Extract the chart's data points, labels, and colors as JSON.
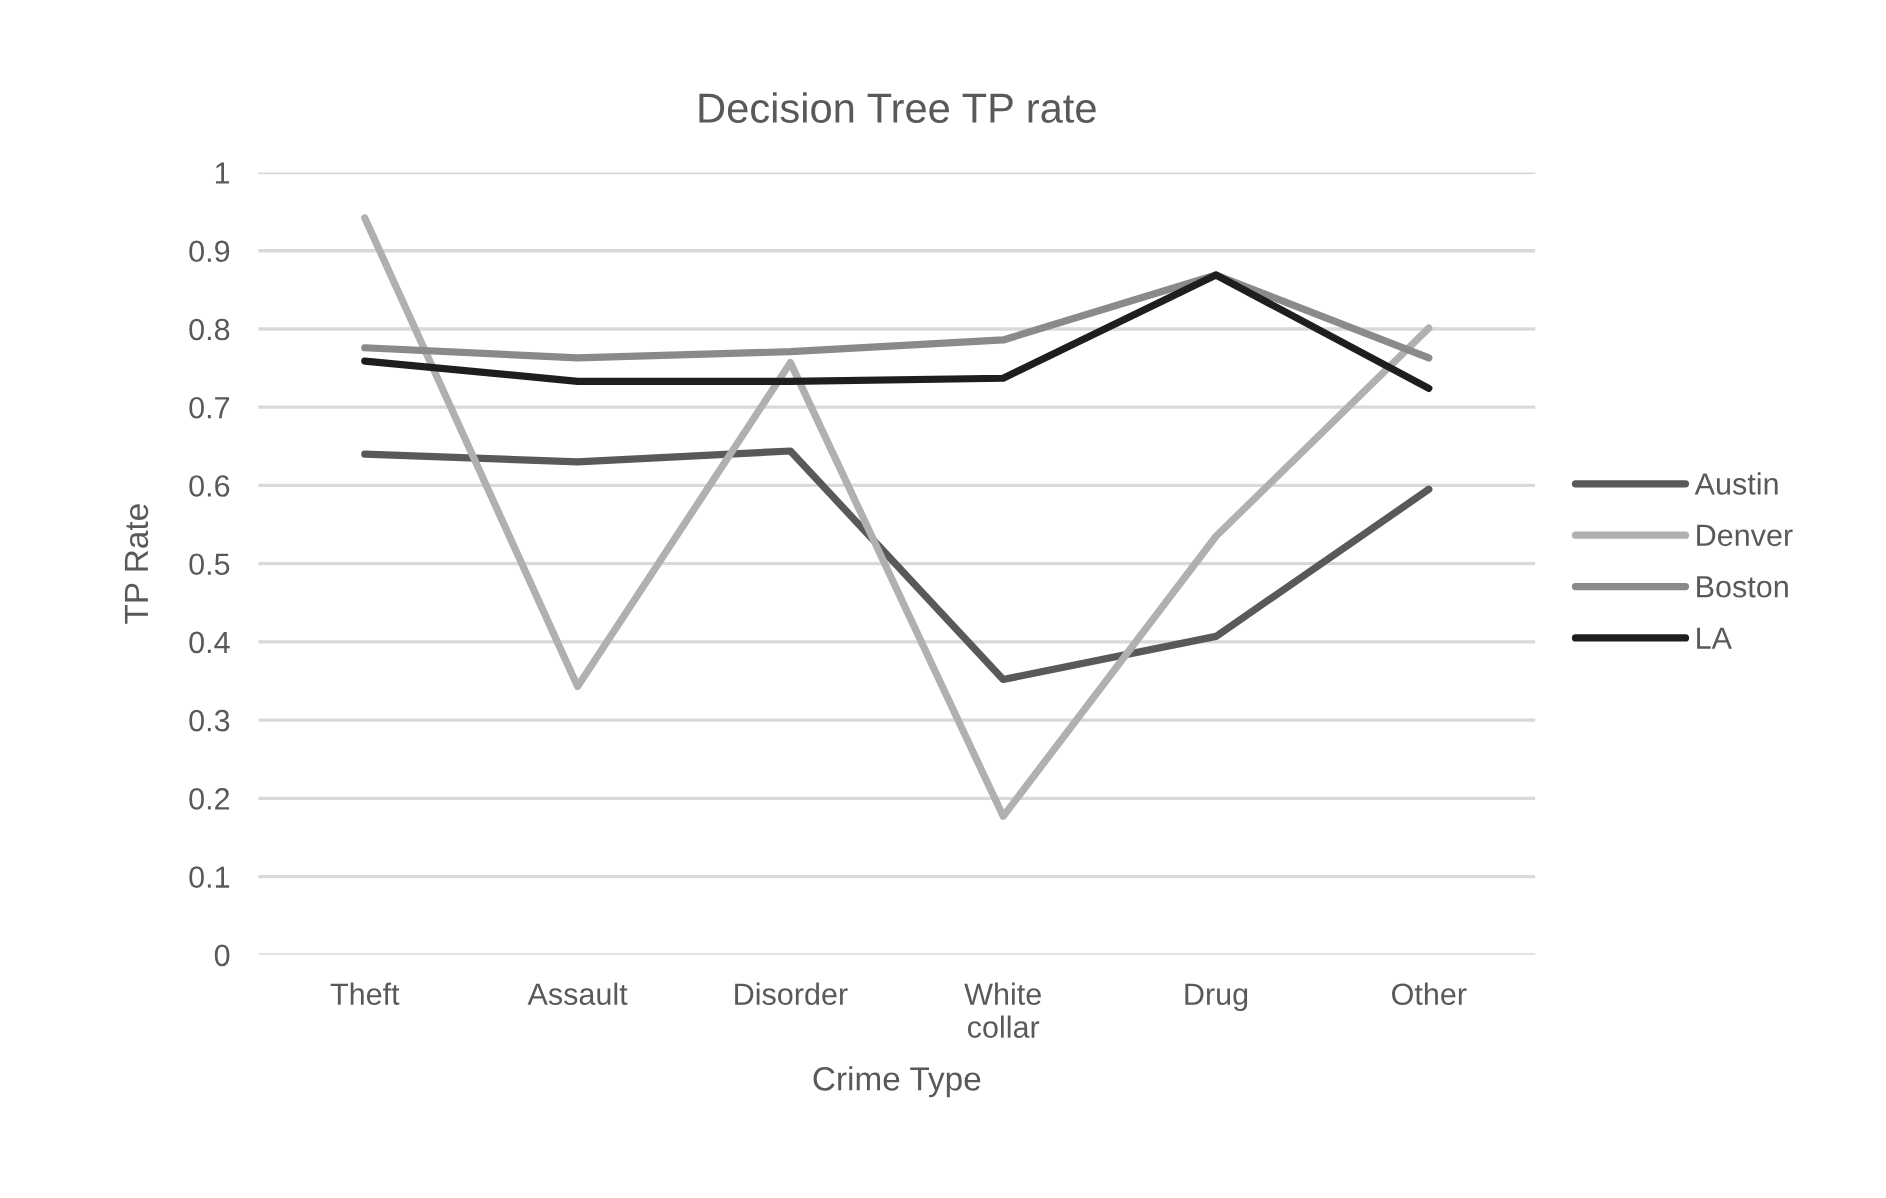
{
  "chart_data": {
    "type": "line",
    "title": "Decision Tree TP rate",
    "xlabel": "Crime Type",
    "ylabel": "TP Rate",
    "categories": [
      "Theft",
      "Assault",
      "Disorder",
      "White collar",
      "Drug",
      "Other"
    ],
    "series": [
      {
        "name": "Austin",
        "color": "#595959",
        "values": [
          0.64,
          0.63,
          0.644,
          0.352,
          0.407,
          0.595
        ]
      },
      {
        "name": "Denver",
        "color": "#b0b0b0",
        "values": [
          0.942,
          0.343,
          0.757,
          0.177,
          0.535,
          0.801
        ]
      },
      {
        "name": "Boston",
        "color": "#8a8a8a",
        "values": [
          0.776,
          0.763,
          0.771,
          0.786,
          0.869,
          0.763
        ]
      },
      {
        "name": "LA",
        "color": "#1e1e1e",
        "values": [
          0.759,
          0.733,
          0.733,
          0.737,
          0.869,
          0.724
        ]
      }
    ],
    "ylim": [
      0,
      1
    ],
    "yticks": [
      0,
      0.1,
      0.2,
      0.3,
      0.4,
      0.5,
      0.6,
      0.7,
      0.8,
      0.9,
      1
    ],
    "grid": "y",
    "legend": "right",
    "marker": "none",
    "line_style": "solid"
  }
}
